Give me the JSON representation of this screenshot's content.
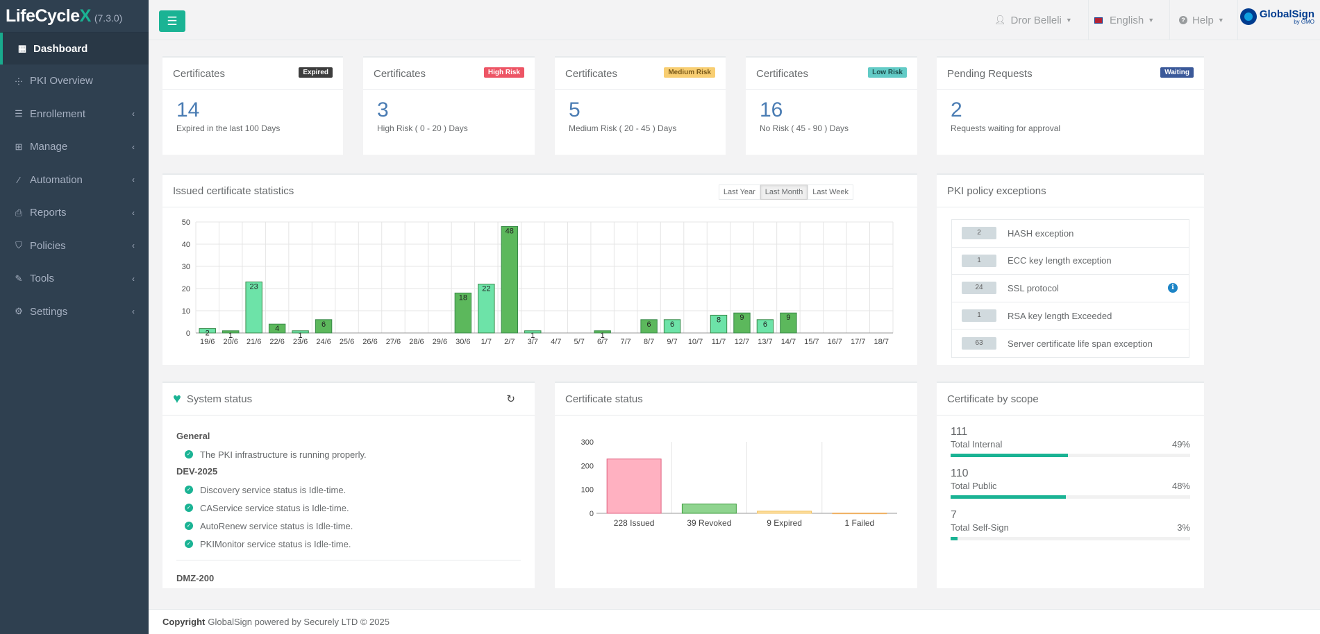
{
  "brand": {
    "name_main": "LifeCycle",
    "name_x": "X",
    "version": "(7.3.0)"
  },
  "sidebar": {
    "items": [
      {
        "label": "Dashboard",
        "icon": "dashboard-icon"
      },
      {
        "label": "PKI Overview",
        "icon": "sitemap-icon"
      },
      {
        "label": "Enrollement",
        "icon": "list-icon"
      },
      {
        "label": "Manage",
        "icon": "table-icon"
      },
      {
        "label": "Automation",
        "icon": "magic-icon"
      },
      {
        "label": "Reports",
        "icon": "print-icon"
      },
      {
        "label": "Policies",
        "icon": "shield-icon"
      },
      {
        "label": "Tools",
        "icon": "wrench-icon"
      },
      {
        "label": "Settings",
        "icon": "gear-icon"
      }
    ]
  },
  "topbar": {
    "user": "Dror Belleli",
    "language": "English",
    "help": "Help",
    "logo_name": "GlobalSign",
    "logo_sub": "by GMO"
  },
  "stats": [
    {
      "title": "Certificates",
      "badge": "Expired",
      "badge_color": "#3d3d3d",
      "value": "14",
      "desc": "Expired in the last 100 Days"
    },
    {
      "title": "Certificates",
      "badge": "High Risk",
      "badge_color": "#ed5565",
      "value": "3",
      "desc": "High Risk ( 0 - 20 ) Days"
    },
    {
      "title": "Certificates",
      "badge": "Medium Risk",
      "badge_color": "#f8ce72",
      "value": "5",
      "desc": "Medium Risk ( 20 - 45 ) Days"
    },
    {
      "title": "Certificates",
      "badge": "Low Risk",
      "badge_color": "#62cbc6",
      "value": "16",
      "desc": "No Risk ( 45 - 90 ) Days"
    },
    {
      "title": "Pending Requests",
      "badge": "Waiting",
      "badge_color": "#3b5999",
      "value": "2",
      "desc": "Requests waiting for approval"
    }
  ],
  "issued": {
    "title": "Issued certificate statistics",
    "ranges": [
      "Last Year",
      "Last Month",
      "Last Week"
    ],
    "active_range": "Last Month"
  },
  "chart_data": [
    {
      "type": "bar",
      "title": "Issued certificate statistics",
      "categories": [
        "19/6",
        "20/6",
        "21/6",
        "22/6",
        "23/6",
        "24/6",
        "25/6",
        "26/6",
        "27/6",
        "28/6",
        "29/6",
        "30/6",
        "1/7",
        "2/7",
        "3/7",
        "4/7",
        "5/7",
        "6/7",
        "7/7",
        "8/7",
        "9/7",
        "10/7",
        "11/7",
        "12/7",
        "13/7",
        "14/7",
        "15/7",
        "16/7",
        "17/7",
        "18/7"
      ],
      "values": [
        2,
        1,
        23,
        4,
        1,
        6,
        0,
        0,
        0,
        0,
        0,
        18,
        22,
        48,
        1,
        0,
        0,
        1,
        0,
        6,
        6,
        0,
        8,
        9,
        6,
        9,
        0,
        0,
        0,
        0
      ],
      "yticks": [
        0,
        10,
        20,
        30,
        40,
        50
      ],
      "ylim": [
        0,
        50
      ],
      "grid": true,
      "colors": {
        "light": "#6de3a8",
        "dark": "#5cb85c"
      }
    },
    {
      "type": "bar",
      "title": "Certificate status",
      "categories": [
        "228 Issued",
        "39 Revoked",
        "9 Expired",
        "1 Failed"
      ],
      "values": [
        228,
        39,
        9,
        1
      ],
      "yticks": [
        0,
        100,
        200,
        300
      ],
      "ylim": [
        0,
        300
      ],
      "colors": [
        "#ffb1c1",
        "#8fd48f",
        "#ffe0a0",
        "#ffd9a0"
      ],
      "borders": [
        "#e06080",
        "#3a9a3a",
        "#f0c060",
        "#f0b060"
      ]
    }
  ],
  "exceptions": {
    "title": "PKI policy exceptions",
    "items": [
      {
        "count": "2",
        "label": "HASH exception"
      },
      {
        "count": "1",
        "label": "ECC key length exception"
      },
      {
        "count": "24",
        "label": "SSL protocol",
        "info": true
      },
      {
        "count": "1",
        "label": "RSA key length Exceeded"
      },
      {
        "count": "63",
        "label": "Server certificate life span exception"
      }
    ]
  },
  "system": {
    "title": "System status",
    "general_head": "General",
    "general_line": "The PKI infrastructure is running properly.",
    "dev_head": "DEV-2025",
    "dev_lines": [
      "Discovery service status is Idle-time.",
      "CAService service status is Idle-time.",
      "AutoRenew service status is Idle-time.",
      "PKIMonitor service status is Idle-time."
    ],
    "dmz_head": "DMZ-200"
  },
  "cert_status": {
    "title": "Certificate status"
  },
  "scope": {
    "title": "Certificate by scope",
    "items": [
      {
        "num": "111",
        "label": "Total Internal",
        "pct": "49%",
        "fraction": 0.49
      },
      {
        "num": "110",
        "label": "Total Public",
        "pct": "48%",
        "fraction": 0.48
      },
      {
        "num": "7",
        "label": "Total Self-Sign",
        "pct": "3%",
        "fraction": 0.03
      }
    ]
  },
  "footer": {
    "copyright": "Copyright",
    "text": "GlobalSign powered by Securely LTD © 2025"
  }
}
